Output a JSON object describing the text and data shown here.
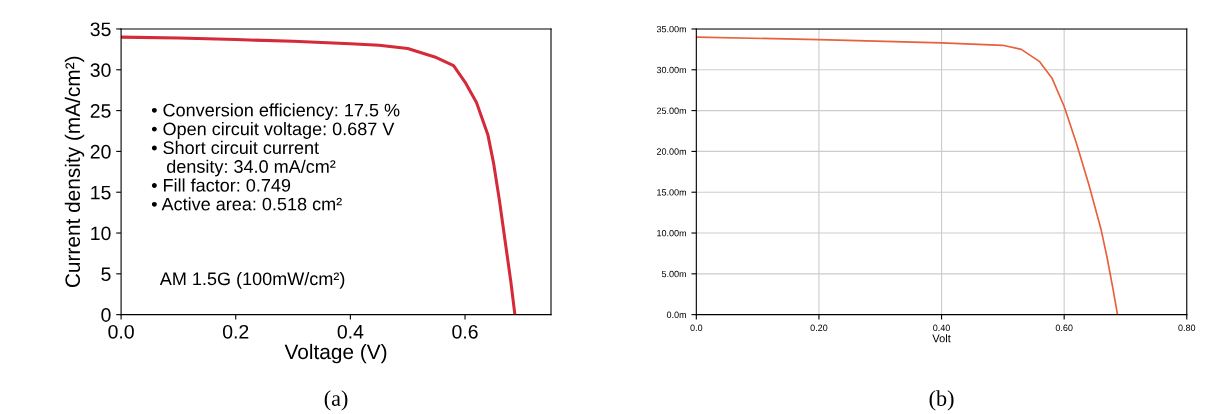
{
  "chart_data": [
    {
      "type": "line",
      "xlabel": "Voltage (V)",
      "ylabel": "Current density (mA/cm²)",
      "x": [
        0,
        0.1,
        0.2,
        0.3,
        0.4,
        0.45,
        0.5,
        0.55,
        0.58,
        0.6,
        0.62,
        0.64,
        0.65,
        0.66,
        0.67,
        0.68,
        0.687
      ],
      "series": [
        {
          "color": "#d42a3a",
          "values": [
            34.0,
            33.9,
            33.7,
            33.5,
            33.2,
            33.0,
            32.6,
            31.5,
            30.5,
            28.5,
            26.0,
            22.0,
            18.5,
            14.0,
            9.0,
            4.0,
            0
          ]
        }
      ],
      "xlim": [
        0,
        0.75
      ],
      "xticks": [
        {
          "value": 0,
          "label": "0.0"
        },
        0.2,
        0.4,
        0.6
      ],
      "ylim": [
        0,
        35
      ],
      "yticks": [
        0,
        5,
        10,
        15,
        20,
        25,
        30,
        35
      ],
      "grid": false,
      "marker": "none",
      "line_style": "solid",
      "annotations": [
        "• Conversion efficiency: 17.5 %\n• Open circuit voltage: 0.687 V\n• Short circuit current\n   density: 34.0 mA/cm²\n• Fill factor: 0.749\n• Active area: 0.518 cm²",
        "AM 1.5G (100mW/cm²)",
        "(a)"
      ]
    },
    {
      "type": "line",
      "xlabel": "Volt",
      "x": [
        0,
        0.2,
        0.4,
        0.5,
        0.53,
        0.56,
        0.58,
        0.6,
        0.62,
        0.64,
        0.66,
        0.67,
        0.68,
        0.687
      ],
      "series": [
        {
          "color": "#e8603c",
          "values": [
            34.0,
            33.7,
            33.3,
            33.0,
            32.5,
            31.0,
            29.0,
            25.5,
            21.0,
            16.0,
            10.5,
            7.0,
            3.0,
            0
          ]
        }
      ],
      "xlim": [
        0,
        0.8
      ],
      "xticks": [
        {
          "value": 0,
          "label": "0.0"
        },
        {
          "value": 0.2,
          "label": "0.20"
        },
        {
          "value": 0.4,
          "label": "0.40"
        },
        {
          "value": 0.6,
          "label": "0.60"
        },
        {
          "value": 0.8,
          "label": "0.80"
        }
      ],
      "ylim": [
        0,
        35
      ],
      "yticks": [
        {
          "value": 0,
          "label": "0.0m"
        },
        {
          "value": 5,
          "label": "5.00m"
        },
        {
          "value": 10,
          "label": "10.00m"
        },
        {
          "value": 15,
          "label": "15.00m"
        },
        {
          "value": 20,
          "label": "20.00m"
        },
        {
          "value": 25,
          "label": "25.00m"
        },
        {
          "value": 30,
          "label": "30.00m"
        },
        {
          "value": 35,
          "label": "35.00m"
        }
      ],
      "grid": true,
      "marker": "none",
      "line_style": "solid",
      "annotations": [
        "(b)"
      ]
    }
  ]
}
